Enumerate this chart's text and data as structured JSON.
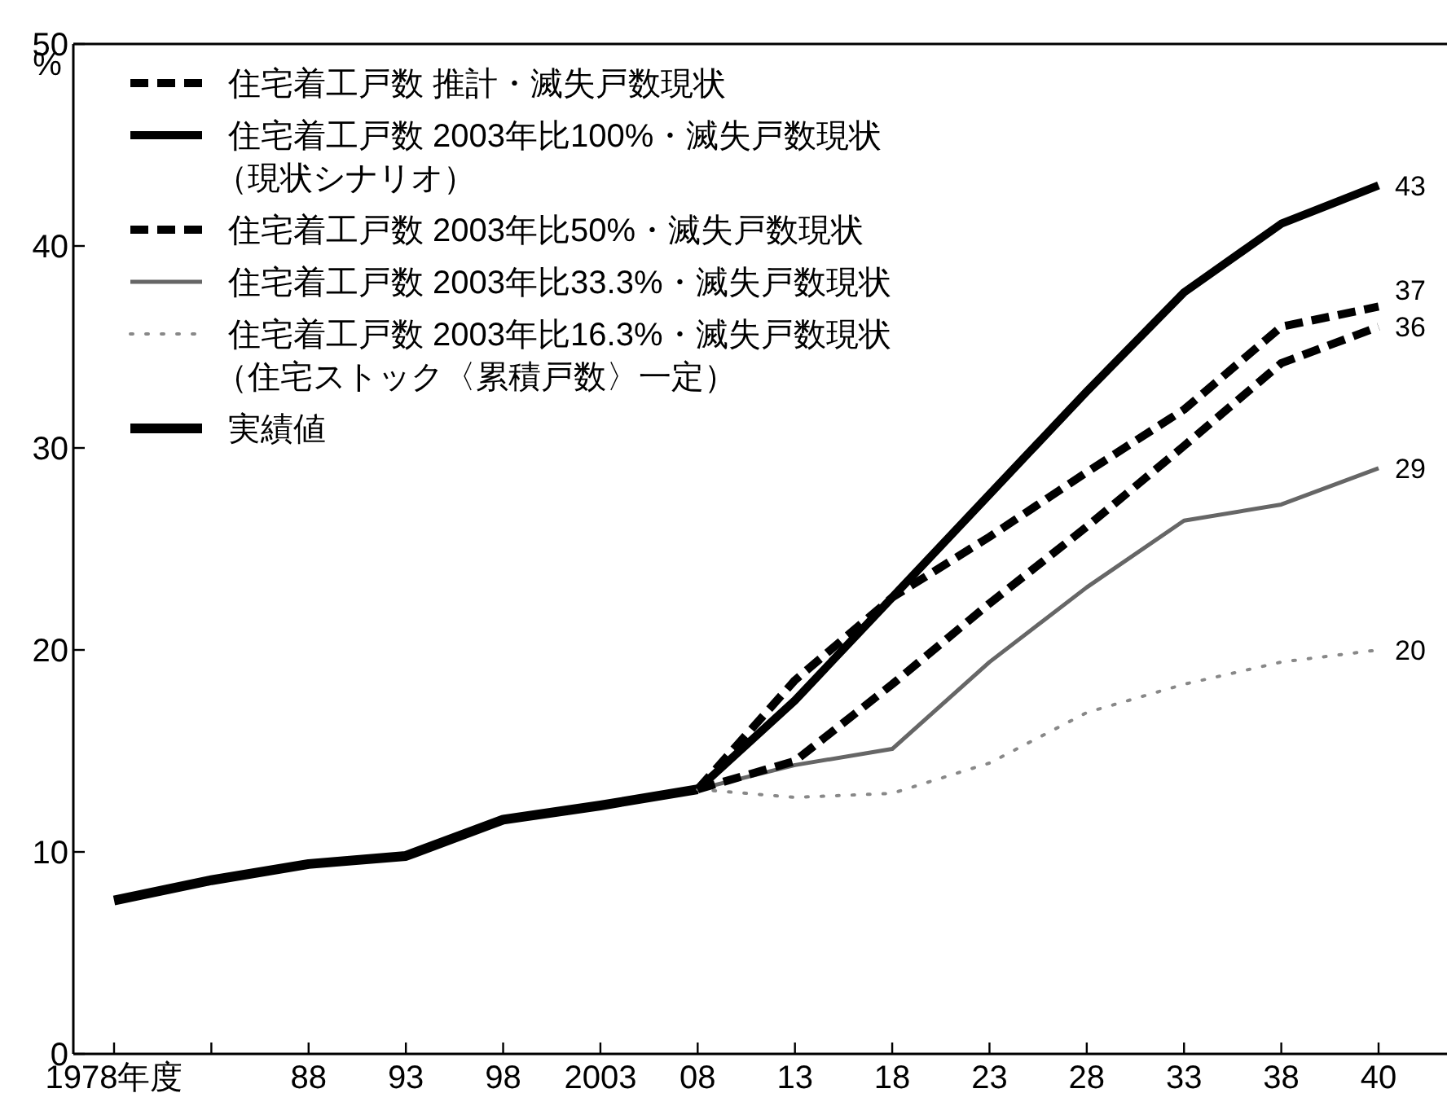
{
  "chart_data": {
    "type": "line",
    "ylabel": "%",
    "categories": [
      "1978年度",
      null,
      "88",
      "93",
      "98",
      "2003",
      "08",
      "13",
      "18",
      "23",
      "28",
      "33",
      "38",
      "40"
    ],
    "ylim": [
      0,
      50
    ],
    "yticks": [
      0,
      10,
      20,
      30,
      40,
      50
    ],
    "grid": false,
    "legend": "top left",
    "marker": "none",
    "series": [
      {
        "name": "住宅着工戸数 推計・滅失戸数現状",
        "color": "#000000",
        "line_style": "dashed",
        "values": [
          null,
          null,
          null,
          null,
          null,
          null,
          13.1,
          18.5,
          22.6,
          25.6,
          28.8,
          31.9,
          36.0,
          37
        ],
        "value_labels": [
          null,
          null,
          null,
          null,
          null,
          null,
          null,
          null,
          null,
          null,
          null,
          null,
          null,
          "37"
        ]
      },
      {
        "name": "住宅着工戸数 2003年比100%・滅失戸数現状（現状シナリオ）",
        "color": "#000000",
        "line_style": "solid",
        "values": [
          null,
          null,
          null,
          null,
          null,
          null,
          13.1,
          17.5,
          22.6,
          27.7,
          32.8,
          37.7,
          41.1,
          43
        ],
        "value_labels": [
          null,
          null,
          null,
          null,
          null,
          null,
          null,
          null,
          null,
          null,
          null,
          null,
          null,
          "43"
        ]
      },
      {
        "name": "住宅着工戸数 2003年比50%・滅失戸数現状",
        "color": "#000000",
        "line_style": "dashed",
        "values": [
          null,
          null,
          null,
          null,
          null,
          null,
          13.1,
          14.5,
          18.3,
          22.3,
          26.1,
          30.1,
          34.2,
          36
        ],
        "value_labels": [
          null,
          null,
          null,
          null,
          null,
          null,
          null,
          null,
          null,
          null,
          null,
          null,
          null,
          "36"
        ]
      },
      {
        "name": "住宅着工戸数 2003年比33.3%・滅失戸数現状",
        "color": "#666666",
        "line_style": "solid",
        "values": [
          null,
          null,
          null,
          null,
          null,
          null,
          13.1,
          14.3,
          15.1,
          19.4,
          23.1,
          26.4,
          27.2,
          29
        ],
        "value_labels": [
          null,
          null,
          null,
          null,
          null,
          null,
          null,
          null,
          null,
          null,
          null,
          null,
          null,
          "29"
        ]
      },
      {
        "name": "住宅着工戸数 2003年比16.3%・滅失戸数現状（住宅ストック〈累積戸数〉一定）",
        "color": "#888888",
        "line_style": "dotted",
        "values": [
          null,
          null,
          null,
          null,
          null,
          null,
          13.1,
          12.7,
          12.9,
          14.4,
          16.9,
          18.3,
          19.4,
          20
        ],
        "value_labels": [
          null,
          null,
          null,
          null,
          null,
          null,
          null,
          null,
          null,
          null,
          null,
          null,
          null,
          "20"
        ]
      },
      {
        "name": "実績値",
        "color": "#000000",
        "line_style": "solid",
        "values": [
          7.6,
          8.6,
          9.4,
          9.8,
          11.6,
          12.3,
          13.1,
          null,
          null,
          null,
          null,
          null,
          null,
          null
        ]
      }
    ]
  }
}
